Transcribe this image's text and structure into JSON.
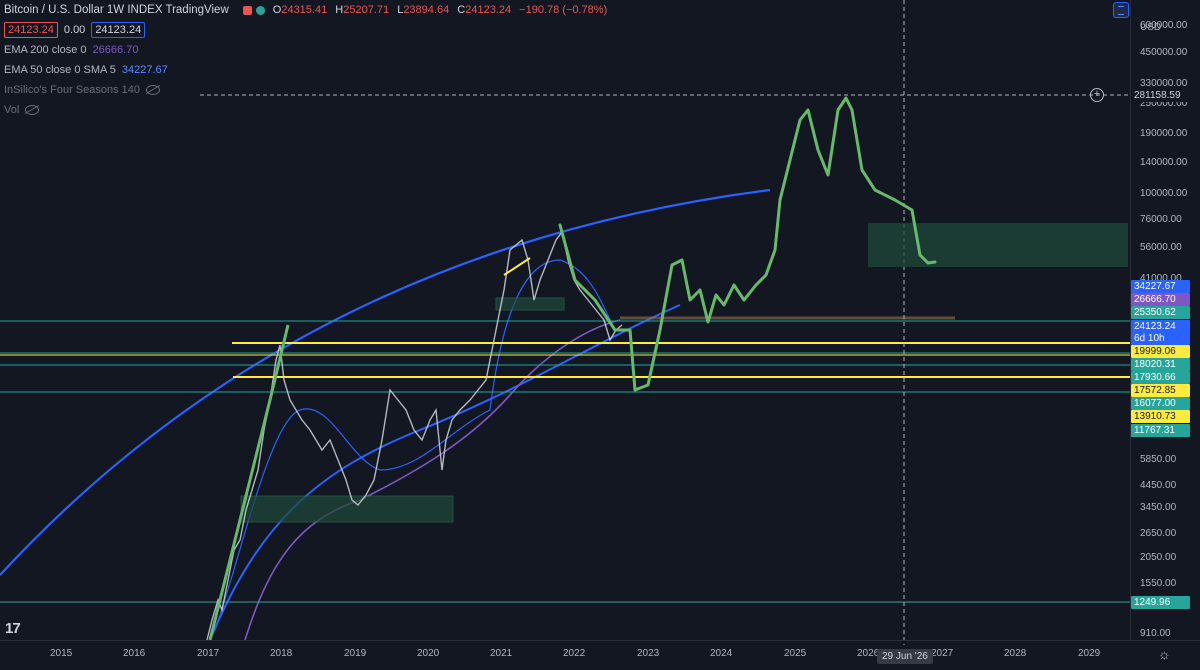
{
  "header": {
    "title": "Bitcoin / U.S. Dollar   1W   INDEX   TradingView",
    "ohlc": {
      "open_label": "O",
      "open": "24315.41",
      "high_label": "H",
      "high": "25207.71",
      "low_label": "L",
      "low": "23894.64",
      "close_label": "C",
      "close": "24123.24",
      "change": "−190.78 (−0.78%)"
    },
    "sell_price": "24123.24",
    "spread": "0.00",
    "buy_price": "24123.24"
  },
  "indicators": [
    {
      "label": "EMA 200 close 0",
      "value": "26666.70"
    },
    {
      "label": "EMA 50 close 0 SMA 5",
      "value": "34227.67"
    },
    {
      "label": "InSilico's Four Seasons 140"
    },
    {
      "label": "Vol"
    }
  ],
  "price_axis": {
    "unit": "USD",
    "labels": [
      "600000.00",
      "450000.00",
      "330000.00",
      "250000.00",
      "190000.00",
      "140000.00",
      "100000.00",
      "76000.00",
      "56000.00",
      "41000.00",
      "5850.00",
      "4450.00",
      "3450.00",
      "2650.00",
      "2050.00",
      "1550.00",
      "910.00"
    ]
  },
  "price_tags": [
    {
      "text": "281158.59",
      "bg": "#131722",
      "fg": "#d1d4dc"
    },
    {
      "text": "34227.67",
      "bg": "#2962ff",
      "fg": "#ffffff"
    },
    {
      "text": "26666.70",
      "bg": "#7e57c2",
      "fg": "#ffffff"
    },
    {
      "text": "25350.62",
      "bg": "#26a69a",
      "fg": "#ffffff"
    },
    {
      "text": "24123.24",
      "bg": "#2962ff",
      "fg": "#ffffff"
    },
    {
      "text": "6d 10h",
      "bg": "#2962ff",
      "fg": "#ffffff"
    },
    {
      "text": "19999.06",
      "bg": "#ffeb3b",
      "fg": "#131722"
    },
    {
      "text": "18020.31",
      "bg": "#26a69a",
      "fg": "#ffffff"
    },
    {
      "text": "17930.66",
      "bg": "#26a69a",
      "fg": "#ffffff"
    },
    {
      "text": "17572.85",
      "bg": "#ffeb3b",
      "fg": "#131722"
    },
    {
      "text": "16077.00",
      "bg": "#26a69a",
      "fg": "#ffffff"
    },
    {
      "text": "13910.73",
      "bg": "#ffeb3b",
      "fg": "#131722"
    },
    {
      "text": "11767.31",
      "bg": "#26a69a",
      "fg": "#ffffff"
    },
    {
      "text": "1249.96",
      "bg": "#26a69a",
      "fg": "#ffffff"
    }
  ],
  "time_axis": {
    "labels": [
      "2015",
      "2016",
      "2017",
      "2018",
      "2019",
      "2020",
      "2021",
      "2022",
      "2023",
      "2024",
      "2025",
      "2026",
      "2027",
      "2028",
      "2029"
    ],
    "crosshair_date": "29 Jun '26"
  },
  "colors": {
    "background": "#131722",
    "up": "#d1d4dc",
    "green_drawing": "#66bb6a",
    "arc": "#2962ff",
    "ema200": "#7e57c2",
    "ema50": "#2962ff",
    "horizontal_yellow": "#ffeb3b",
    "horizontal_teal": "#26a69a"
  },
  "icons": {
    "logo": "tradingview-logo-icon",
    "settings": "settings-gear-icon",
    "add": "plus-circle-icon"
  },
  "logo_text": "17"
}
